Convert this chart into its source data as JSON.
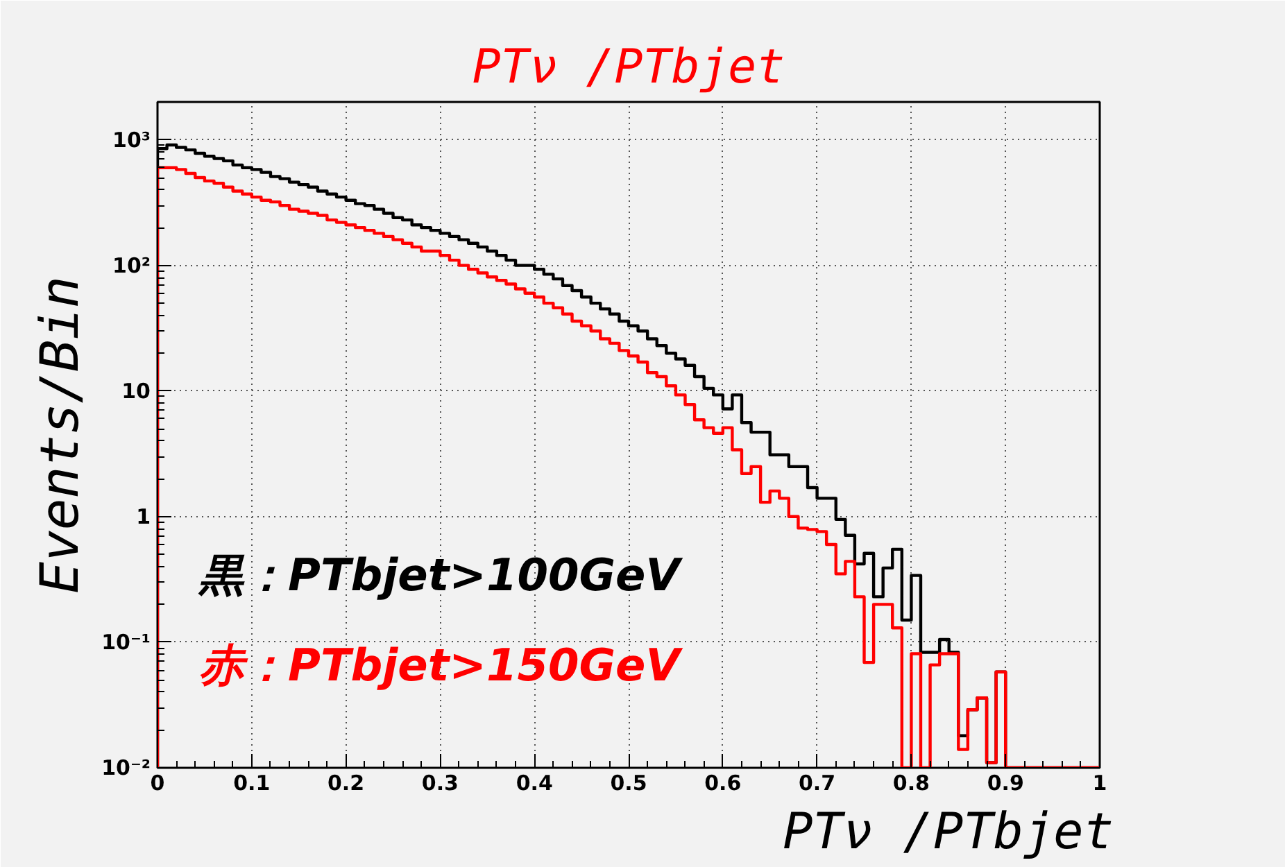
{
  "chart_data": {
    "type": "histogram",
    "title": "PTν /PTbjet",
    "xlabel": "PTν /PTbjet",
    "ylabel": "Events/Bin",
    "bins": [
      0,
      0.01,
      0.02,
      0.03,
      0.04,
      0.05,
      0.06,
      0.07,
      0.08,
      0.09,
      0.1,
      0.11,
      0.12,
      0.13,
      0.14,
      0.15,
      0.16,
      0.17,
      0.18,
      0.19,
      0.2,
      0.21,
      0.22,
      0.23,
      0.24,
      0.25,
      0.26,
      0.27,
      0.28,
      0.29,
      0.3,
      0.31,
      0.32,
      0.33,
      0.34,
      0.35,
      0.36,
      0.37,
      0.38,
      0.39,
      0.4,
      0.41,
      0.42,
      0.43,
      0.44,
      0.45,
      0.46,
      0.47,
      0.48,
      0.49,
      0.5,
      0.51,
      0.52,
      0.53,
      0.54,
      0.55,
      0.56,
      0.57,
      0.58,
      0.59,
      0.6,
      0.61,
      0.62,
      0.63,
      0.64,
      0.65,
      0.66,
      0.67,
      0.68,
      0.69,
      0.7,
      0.71,
      0.72,
      0.73,
      0.74,
      0.75,
      0.76,
      0.77,
      0.78,
      0.79,
      0.8,
      0.81,
      0.82,
      0.83,
      0.84,
      0.85,
      0.86,
      0.87,
      0.88,
      0.89,
      0.9,
      0.91,
      0.92,
      0.93,
      0.94,
      0.95,
      0.96,
      0.97,
      0.98,
      0.99,
      1
    ],
    "series": [
      {
        "name": "黒：PTbjet>100GeV",
        "color": "#000000",
        "values": [
          850,
          910,
          870,
          830,
          780,
          740,
          710,
          680,
          630,
          600,
          580,
          550,
          510,
          490,
          460,
          440,
          420,
          390,
          370,
          350,
          330,
          310,
          300,
          280,
          260,
          240,
          230,
          210,
          200,
          190,
          180,
          170,
          160,
          150,
          140,
          130,
          120,
          110,
          100,
          100,
          93,
          85,
          78,
          69,
          63,
          56,
          50,
          45,
          41,
          36,
          33,
          30,
          26,
          23,
          20,
          18,
          16,
          13,
          10.5,
          9.3,
          7.2,
          9.3,
          5.6,
          4.7,
          4.7,
          3.1,
          3.1,
          2.5,
          2.5,
          1.7,
          1.4,
          1.4,
          0.95,
          0.71,
          0.42,
          0.51,
          0.23,
          0.39,
          0.55,
          0.15,
          0.34,
          0.083,
          0.083,
          0.105,
          0.083,
          0.018,
          0.029,
          0.036,
          0.011,
          0.058,
          null,
          null,
          null,
          null,
          null,
          null,
          null,
          null,
          null,
          null
        ]
      },
      {
        "name": "赤：PTbjet>150GeV",
        "color": "#ff0000",
        "values": [
          600,
          600,
          580,
          540,
          500,
          470,
          450,
          420,
          390,
          370,
          350,
          330,
          320,
          300,
          280,
          270,
          260,
          250,
          230,
          220,
          210,
          200,
          190,
          180,
          170,
          160,
          150,
          140,
          130,
          130,
          120,
          110,
          100,
          93,
          87,
          81,
          76,
          71,
          65,
          60,
          56,
          50,
          46,
          41,
          36,
          33,
          30,
          26,
          24,
          21,
          19,
          17,
          14,
          13,
          11,
          9.3,
          7.8,
          5.9,
          5.1,
          4.6,
          5.1,
          3.4,
          2.2,
          2.5,
          1.3,
          1.6,
          1.4,
          1.0,
          0.81,
          0.79,
          0.76,
          0.6,
          0.35,
          0.44,
          0.23,
          0.069,
          0.2,
          0.2,
          0.13,
          null,
          0.081,
          null,
          0.066,
          0.081,
          0.081,
          0.014,
          0.029,
          0.036,
          0.011,
          0.058,
          null,
          null,
          null,
          null,
          null,
          null,
          null,
          null,
          null,
          null
        ]
      }
    ],
    "xlim": [
      0,
      1
    ],
    "ylim": [
      0.01,
      2000
    ],
    "xticks": [
      0,
      0.1,
      0.2,
      0.3,
      0.4,
      0.5,
      0.6,
      0.7,
      0.8,
      0.9,
      1
    ],
    "yticks": [
      {
        "value": 0.01,
        "label": "10⁻²"
      },
      {
        "value": 0.1,
        "label": "10⁻¹"
      },
      1,
      10,
      {
        "value": 100,
        "label": "10²"
      },
      {
        "value": 1000,
        "label": "10³"
      }
    ],
    "log": "y",
    "grid": true
  }
}
